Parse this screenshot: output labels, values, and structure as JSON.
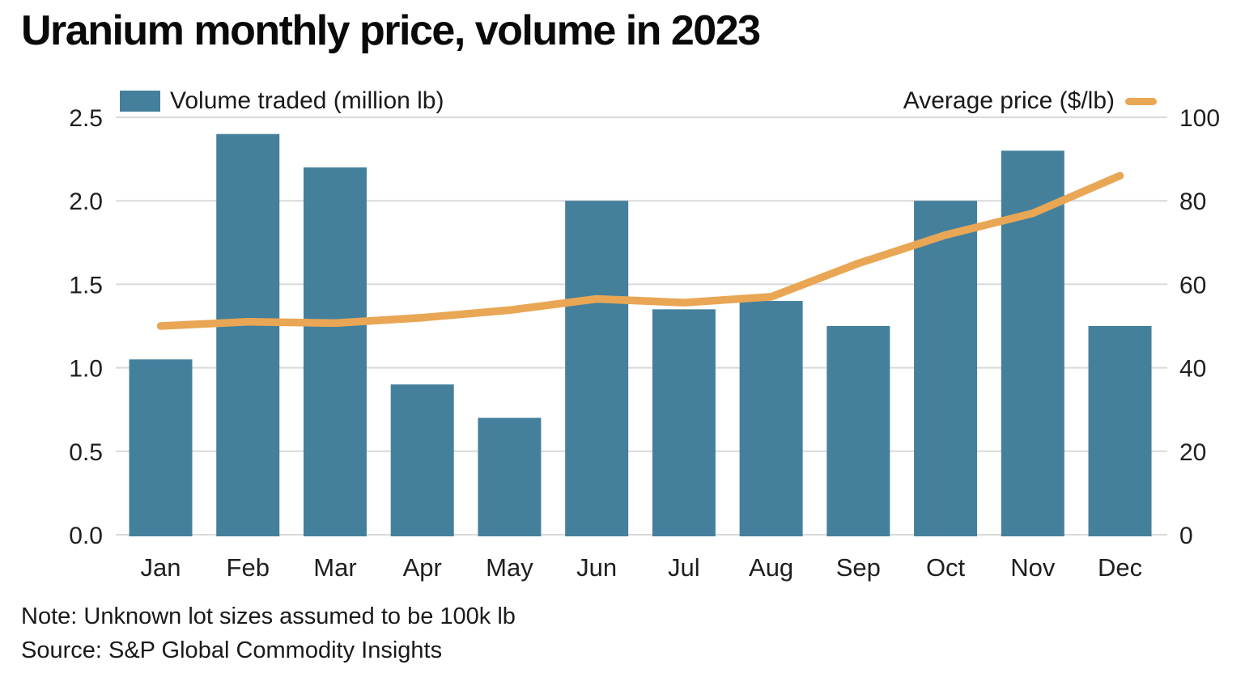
{
  "title": "Uranium monthly price, volume in 2023",
  "legend": {
    "bars_label": "Volume traded (million lb)",
    "line_label": "Average price ($/lb)"
  },
  "note": "Note: Unknown lot sizes assumed to be 100k lb",
  "source": "Source: S&P Global Commodity Insights",
  "colors": {
    "bar": "#44809C",
    "line": "#E9A654",
    "grid": "#D9D9D9",
    "axis_text": "#1f1f1f"
  },
  "chart_data": {
    "type": "bar+line",
    "title": "Uranium monthly price, volume in 2023",
    "categories": [
      "Jan",
      "Feb",
      "Mar",
      "Apr",
      "May",
      "Jun",
      "Jul",
      "Aug",
      "Sep",
      "Oct",
      "Nov",
      "Dec"
    ],
    "series": [
      {
        "name": "Volume traded (million lb)",
        "type": "bar",
        "axis": "left",
        "values": [
          1.05,
          2.4,
          2.2,
          0.9,
          0.7,
          2.0,
          1.35,
          1.4,
          1.25,
          2.0,
          2.3,
          1.25
        ]
      },
      {
        "name": "Average price ($/lb)",
        "type": "line",
        "axis": "right",
        "values": [
          50,
          51,
          50.7,
          52,
          53.8,
          56.5,
          55.6,
          57,
          65,
          71.8,
          77,
          86
        ]
      }
    ],
    "left_axis": {
      "tick_labels": [
        "0.0",
        "0.5",
        "1.0",
        "1.5",
        "2.0",
        "2.5"
      ],
      "range": [
        0,
        2.5
      ]
    },
    "right_axis": {
      "tick_labels": [
        "0",
        "20",
        "40",
        "60",
        "80",
        "100"
      ],
      "range": [
        0,
        100
      ]
    },
    "grid": true,
    "legend_position": "top"
  }
}
